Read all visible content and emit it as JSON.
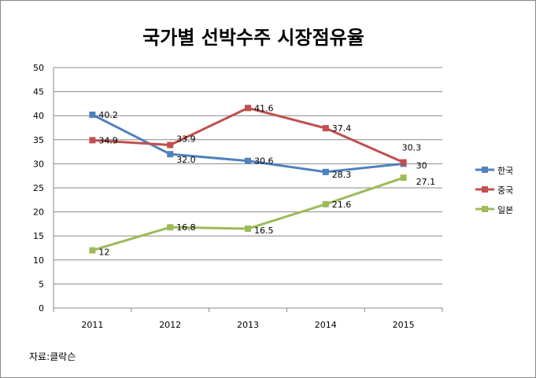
{
  "chart_data": {
    "type": "line",
    "title": "국가별 선박수주 시장점유율",
    "categories": [
      "2011",
      "2012",
      "2013",
      "2014",
      "2015"
    ],
    "ylim": [
      0,
      50
    ],
    "yticks": [
      0,
      5,
      10,
      15,
      20,
      25,
      30,
      35,
      40,
      45,
      50
    ],
    "grid": true,
    "legend": "right",
    "series": [
      {
        "name": "한국",
        "color": "#4f81bd",
        "values": [
          40.2,
          32.0,
          30.6,
          28.3,
          30
        ],
        "labels": [
          "40.2",
          "32.0",
          "30.6",
          "28.3",
          "30"
        ]
      },
      {
        "name": "중국",
        "color": "#c0504d",
        "values": [
          34.9,
          33.9,
          41.6,
          37.4,
          30.3
        ],
        "labels": [
          "34.9",
          "33.9",
          "41.6",
          "37.4",
          "30.3"
        ]
      },
      {
        "name": "일본",
        "color": "#9bbb59",
        "values": [
          12,
          16.8,
          16.5,
          21.6,
          27.1
        ],
        "labels": [
          "12",
          "16.8",
          "16.5",
          "21.6",
          "27.1"
        ]
      }
    ],
    "source": "자료:클락슨"
  }
}
